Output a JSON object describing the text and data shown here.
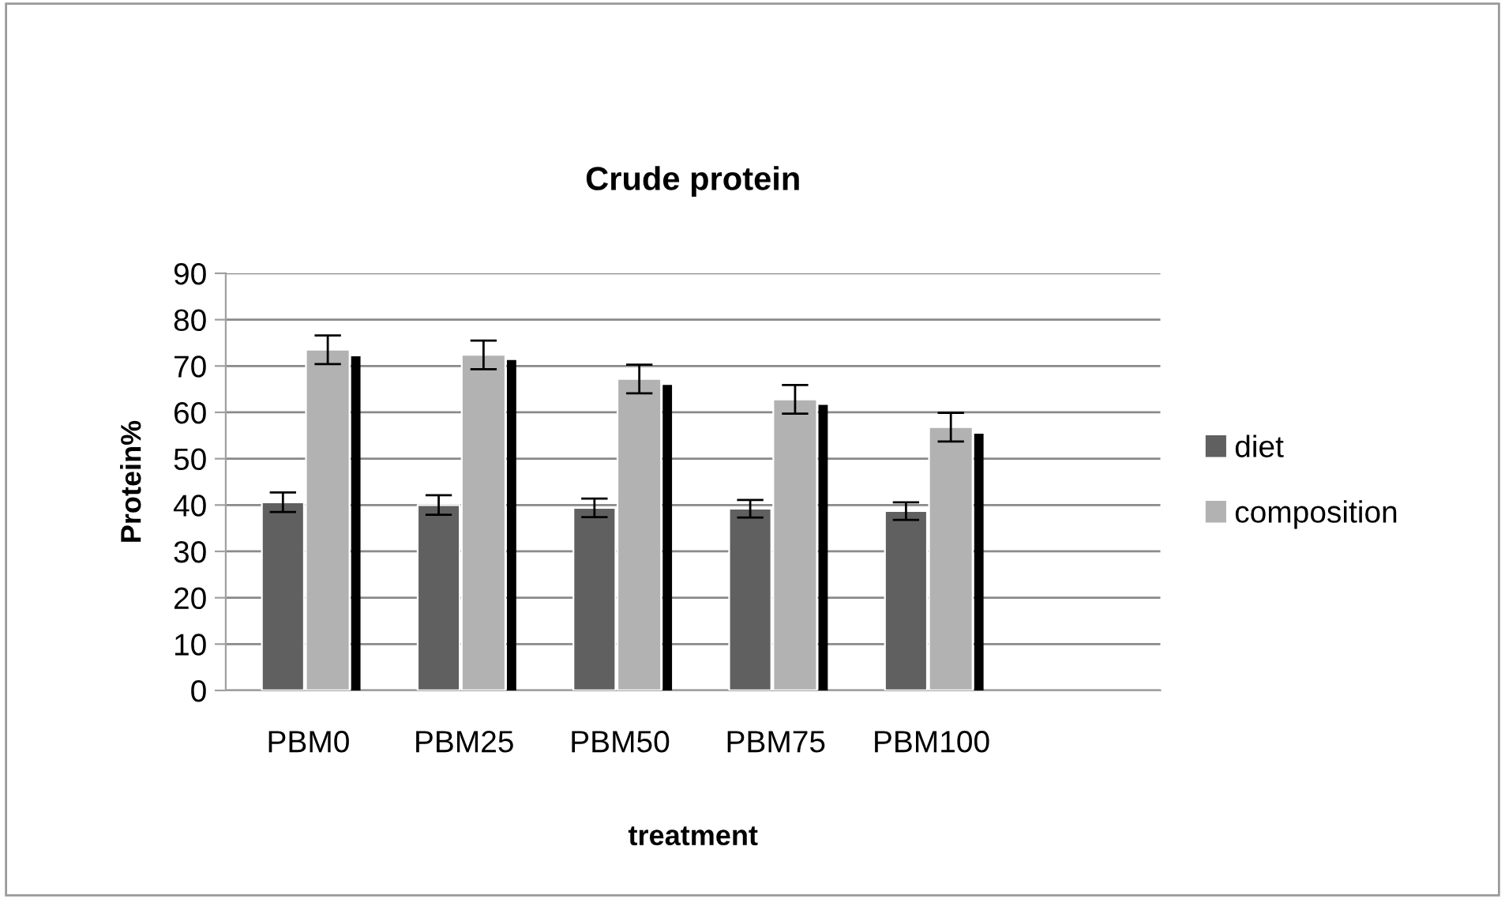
{
  "chart_data": {
    "type": "bar",
    "title": "Crude protein",
    "xlabel": "treatment",
    "ylabel": "Protein%",
    "categories": [
      "PBM0",
      "PBM25",
      "PBM50",
      "PBM75",
      "PBM100"
    ],
    "series": [
      {
        "name": "diet",
        "color": "#606060",
        "values": [
          40.6,
          40.0,
          39.4,
          39.2,
          38.7
        ],
        "errors": [
          2.1,
          2.1,
          2.0,
          1.9,
          1.9
        ]
      },
      {
        "name": "composition",
        "color": "#b2b2b2",
        "values": [
          73.5,
          72.4,
          67.2,
          62.8,
          56.8
        ],
        "errors": [
          3.1,
          3.1,
          3.1,
          3.1,
          3.1
        ]
      },
      {
        "color": "#000000",
        "values": [
          72.1,
          71.3,
          65.9,
          61.6,
          55.4
        ]
      }
    ],
    "ylim": [
      0,
      90
    ],
    "yticks": [
      0,
      10,
      20,
      30,
      40,
      50,
      60,
      70,
      80,
      90
    ],
    "grid": "y",
    "legend": "right"
  }
}
